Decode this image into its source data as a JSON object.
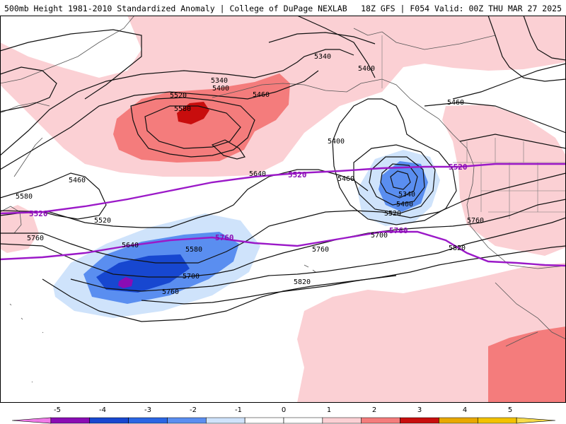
{
  "header": {
    "title": "500mb Height 1981-2010 Standardized Anomaly | College of DuPage NEXLAB",
    "run_info": "18Z GFS | F054 Valid: 00Z THU MAR 27 2025"
  },
  "colors": {
    "anom_pos_1": "#fbd0d4",
    "anom_pos_2": "#f47c7c",
    "anom_pos_3": "#c80d0d",
    "anom_neg_1": "#cfe3fb",
    "anom_neg_2": "#5a8ef0",
    "anom_neg_3": "#1747d0",
    "anom_neg_4": "#8a0cb4",
    "climo_line": "#9b19c8"
  },
  "colorbar": {
    "ticks": [
      "-5",
      "-4",
      "-3",
      "-2",
      "-1",
      "0",
      "1",
      "2",
      "3",
      "4",
      "5"
    ],
    "bins": [
      "#f07be8",
      "#8a0cb4",
      "#1747d0",
      "#2a66e4",
      "#5a8ef0",
      "#cfe3fb",
      "#fff",
      "#fff",
      "#fbd0d4",
      "#f47c7c",
      "#c80d0d",
      "#e8a800",
      "#f2c200",
      "#f7db4a"
    ]
  },
  "contour_labels": {
    "l5340_a": "5340",
    "l5400_a": "5400",
    "l5340_b": "5340",
    "l5400_b": "5400",
    "l5520_a": "5520",
    "l5580_a": "5580",
    "l5460_a": "5460",
    "l5400_c": "5400",
    "l5460_b": "5460",
    "l5460_c": "5460",
    "l5640_a": "5640",
    "l5460_d": "5460",
    "l5580_b": "5580",
    "l5520_b": "5520",
    "l5760_a": "5760",
    "l5640_b": "5640",
    "l5580_c": "5580",
    "l5700_a": "5700",
    "l5760_b": "5760",
    "l5820_a": "5820",
    "l5760_c": "5760",
    "l5700_b": "5700",
    "l5340_c": "5340",
    "l5400_d": "5400",
    "l5520_c": "5520",
    "l5760_d": "5760",
    "l5820_b": "5820"
  },
  "climo_labels": {
    "c5520_a": "5520",
    "c5520_b": "5520",
    "c5520_c": "5520",
    "c5760_a": "5760",
    "c5760_b": "5760"
  }
}
